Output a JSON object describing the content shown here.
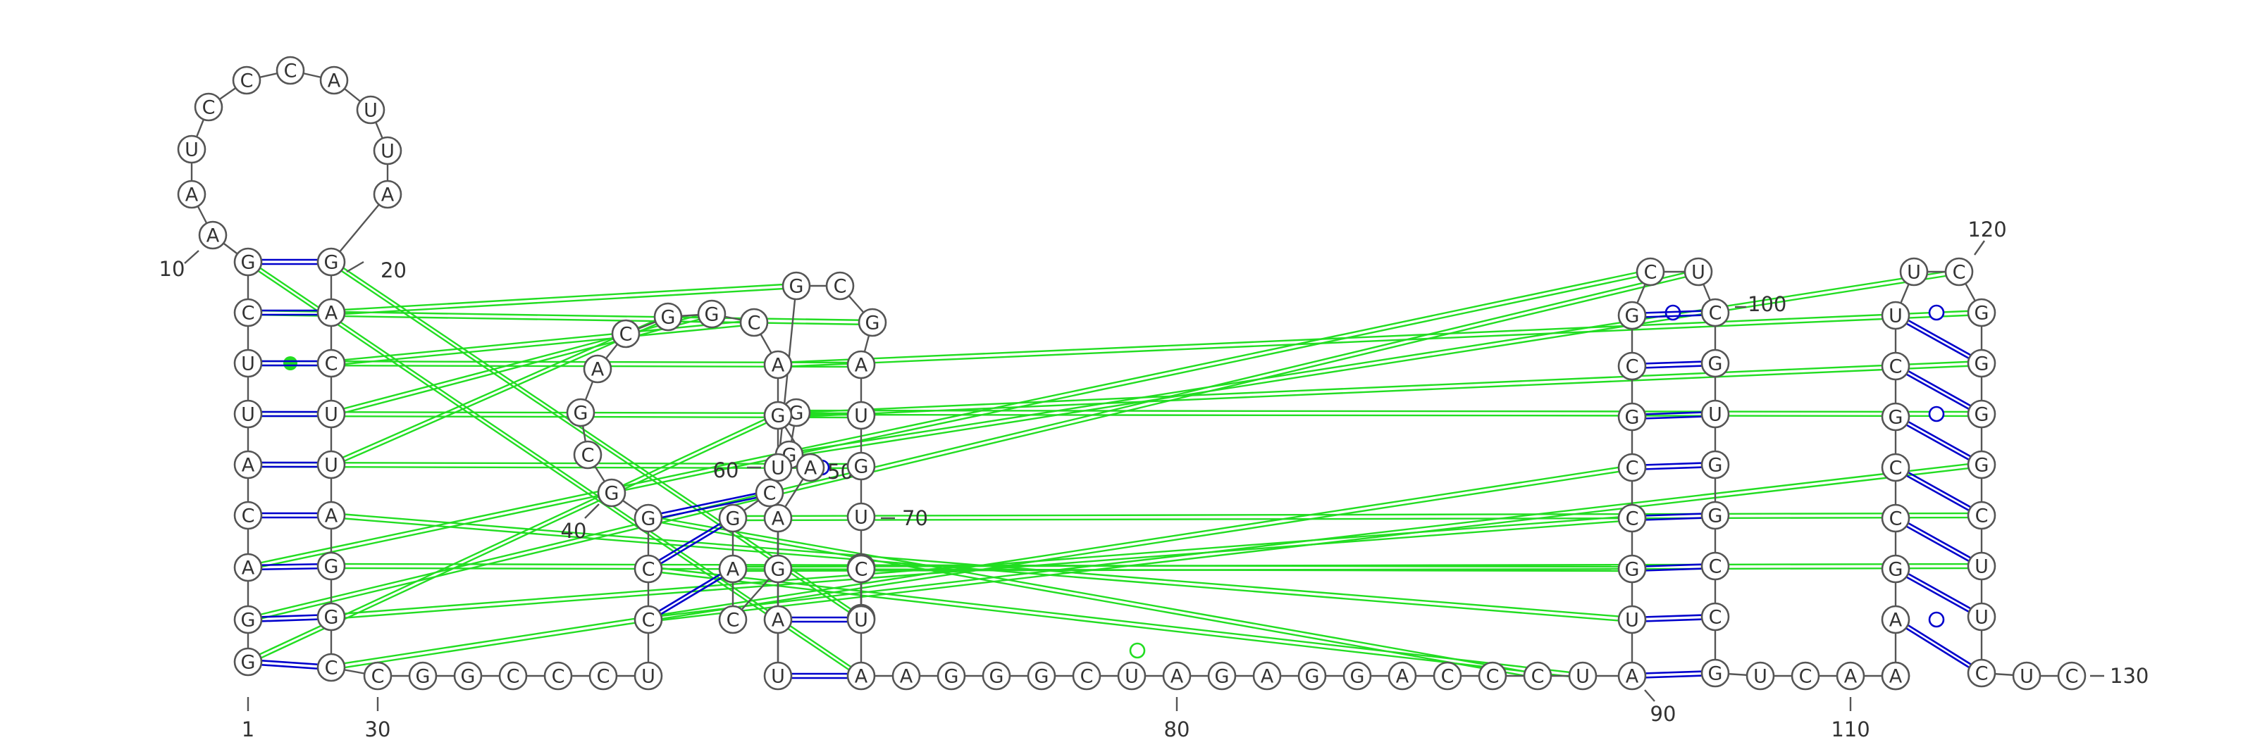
{
  "sequence": "GGACAUUCGAAUCCCAUUAGACUUAGGCCGGCCCUCCGGCGACGGCAGGGCGACGAAGAUUGCGAUGUCUCUAAGGGCUAGAGGACCCUAUGCCGCGCUCGUGGCCGUCAAAAGCCGCUUCGGGGCUUCUC",
  "numbers": [
    "1",
    "10",
    "20",
    "30",
    "40",
    "50",
    "60",
    "70",
    "80",
    "90",
    "100",
    "110",
    "120",
    "130"
  ],
  "colors": {
    "backbone": "#555555",
    "canonical_pair": "#0000cc",
    "tertiary": "#22dd22"
  }
}
